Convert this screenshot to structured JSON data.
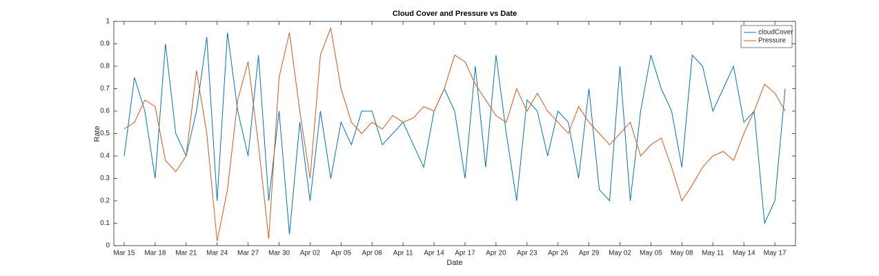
{
  "chart_data": {
    "type": "line",
    "title": "Cloud Cover and Pressure vs Date",
    "x_label": "Date",
    "y_label": "Rate",
    "x": [
      "Mar 15",
      "Mar 16",
      "Mar 17",
      "Mar 18",
      "Mar 19",
      "Mar 20",
      "Mar 21",
      "Mar 22",
      "Mar 23",
      "Mar 24",
      "Mar 25",
      "Mar 26",
      "Mar 27",
      "Mar 28",
      "Mar 29",
      "Mar 30",
      "Mar 31",
      "Apr 01",
      "Apr 02",
      "Apr 03",
      "Apr 04",
      "Apr 05",
      "Apr 06",
      "Apr 07",
      "Apr 08",
      "Apr 09",
      "Apr 10",
      "Apr 11",
      "Apr 12",
      "Apr 13",
      "Apr 14",
      "Apr 15",
      "Apr 16",
      "Apr 17",
      "Apr 18",
      "Apr 19",
      "Apr 20",
      "Apr 21",
      "Apr 22",
      "Apr 23",
      "Apr 24",
      "Apr 25",
      "Apr 26",
      "Apr 27",
      "Apr 28",
      "Apr 29",
      "Apr 30",
      "May 01",
      "May 02",
      "May 03",
      "May 04",
      "May 05",
      "May 06",
      "May 07",
      "May 08",
      "May 09",
      "May 10",
      "May 11",
      "May 12",
      "May 13",
      "May 14",
      "May 15",
      "May 16",
      "May 17",
      "May 18"
    ],
    "series": [
      {
        "name": "cloudCover",
        "color": "#0072bd",
        "values": [
          0.4,
          0.75,
          0.6,
          0.3,
          0.9,
          0.5,
          0.4,
          0.6,
          0.93,
          0.2,
          0.95,
          0.6,
          0.4,
          0.85,
          0.2,
          0.6,
          0.05,
          0.55,
          0.2,
          0.6,
          0.3,
          0.55,
          0.45,
          0.6,
          0.6,
          0.45,
          0.5,
          0.55,
          0.45,
          0.35,
          0.6,
          0.7,
          0.6,
          0.3,
          0.8,
          0.35,
          0.85,
          0.5,
          0.2,
          0.65,
          0.6,
          0.4,
          0.6,
          0.55,
          0.3,
          0.7,
          0.25,
          0.2,
          0.8,
          0.2,
          0.6,
          0.85,
          0.7,
          0.6,
          0.35,
          0.85,
          0.8,
          0.6,
          0.7,
          0.8,
          0.55,
          0.6,
          0.1,
          0.2,
          0.7
        ]
      },
      {
        "name": "Pressure",
        "color": "#d95319",
        "values": [
          0.52,
          0.55,
          0.65,
          0.62,
          0.38,
          0.33,
          0.4,
          0.78,
          0.5,
          0.02,
          0.25,
          0.65,
          0.82,
          0.45,
          0.03,
          0.75,
          0.95,
          0.6,
          0.3,
          0.85,
          0.97,
          0.7,
          0.55,
          0.5,
          0.55,
          0.52,
          0.58,
          0.55,
          0.57,
          0.62,
          0.6,
          0.7,
          0.85,
          0.82,
          0.72,
          0.65,
          0.58,
          0.55,
          0.7,
          0.6,
          0.68,
          0.6,
          0.55,
          0.5,
          0.62,
          0.55,
          0.5,
          0.45,
          0.5,
          0.55,
          0.4,
          0.45,
          0.48,
          0.35,
          0.2,
          0.27,
          0.35,
          0.4,
          0.42,
          0.38,
          0.5,
          0.6,
          0.72,
          0.68,
          0.6
        ]
      }
    ],
    "xlim": [
      "Mar 14",
      "May 19"
    ],
    "xticks": [
      "Mar 15",
      "Mar 18",
      "Mar 21",
      "Mar 24",
      "Mar 27",
      "Mar 30",
      "Apr 02",
      "Apr 05",
      "Apr 08",
      "Apr 11",
      "Apr 14",
      "Apr 17",
      "Apr 20",
      "Apr 23",
      "Apr 26",
      "Apr 29",
      "May 02",
      "May 05",
      "May 08",
      "May 11",
      "May 14",
      "May 17"
    ],
    "ylim": [
      0,
      1
    ],
    "yticks": [
      0,
      0.1,
      0.2,
      0.3,
      0.4,
      0.5,
      0.6,
      0.7,
      0.8,
      0.9,
      1
    ],
    "grid": false,
    "legend": "northeast"
  }
}
